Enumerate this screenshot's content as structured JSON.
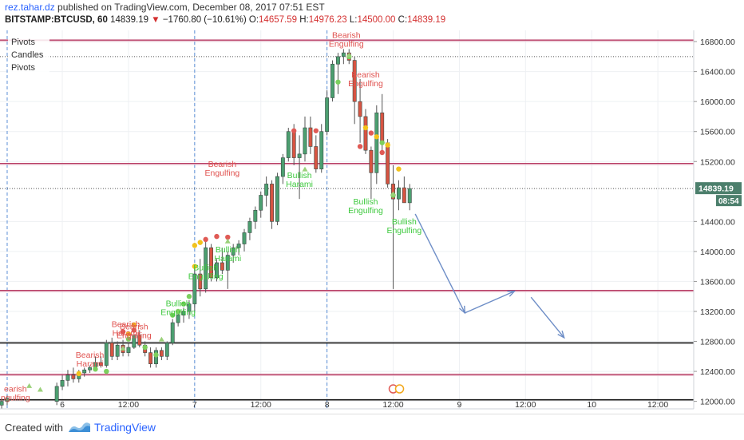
{
  "header": {
    "user": "rez.tahar.dz",
    "published_text": "published on TradingView.com, December 08, 2017 07:51 EST",
    "symbol": "BITSTAMP:BTCUSD, 60",
    "last": "14839.19",
    "change_arrow": "▼",
    "change": "−1760.80 (−10.61%)",
    "o_label": "O:",
    "o_value": "14657.59",
    "h_label": "H:",
    "h_value": "14976.23",
    "l_label": "L:",
    "l_value": "14500.00",
    "c_label": "C:",
    "c_value": "14839.19"
  },
  "indicators": [
    "Pivots",
    "Candles",
    "Pivots"
  ],
  "price_tag": {
    "price": "14839.19",
    "countdown": "08:54"
  },
  "footer": {
    "created_with": "Created with",
    "brand": "TradingView"
  },
  "colors": {
    "up": "#4c9f70",
    "down": "#d75442",
    "pattern_bear": "#e0524f",
    "pattern_bull": "#3ec93e",
    "hline_pink": "#b5365f",
    "arrow": "#6e8ec7",
    "tag": "#4c7f6c"
  },
  "chart_data": {
    "type": "candlestick",
    "y_ticks": [
      12000,
      12400,
      12800,
      13200,
      13600,
      14000,
      14400,
      15200,
      15600,
      16000,
      16400,
      16800
    ],
    "y_tick_labels": [
      "12000.00",
      "12400.00",
      "12800.00",
      "13200.00",
      "13600.00",
      "14000.00",
      "14400.00",
      "15200.00",
      "15600.00",
      "16000.00",
      "16400.00",
      "16800.00"
    ],
    "ylim": [
      11900,
      16950
    ],
    "x_ticks": [
      {
        "label": "6",
        "t": 0
      },
      {
        "label": "12:00",
        "t": 12
      },
      {
        "label": "7",
        "t": 24
      },
      {
        "label": "12:00",
        "t": 36
      },
      {
        "label": "8",
        "t": 48
      },
      {
        "label": "12:00",
        "t": 60
      },
      {
        "label": "9",
        "t": 72
      },
      {
        "label": "12:00",
        "t": 84
      },
      {
        "label": "10",
        "t": 96
      },
      {
        "label": "12:00",
        "t": 108
      }
    ],
    "xlim": [
      -11.3,
      114.5
    ],
    "day_separators": [
      -10,
      24,
      48
    ],
    "hlines": [
      {
        "price": 16820,
        "color": "pink"
      },
      {
        "price": 15175,
        "color": "pink"
      },
      {
        "price": 13480,
        "color": "pink"
      },
      {
        "price": 12780,
        "color": "black"
      },
      {
        "price": 12360,
        "color": "pink"
      },
      {
        "price": 12020,
        "color": "black"
      }
    ],
    "dotted_lines": [
      16600,
      14839
    ],
    "candles": [
      [
        -11,
        11950,
        12050,
        11900,
        12000
      ],
      [
        -10,
        12000,
        12080,
        11950,
        12040
      ],
      [
        -1,
        12000,
        12250,
        11950,
        12200
      ],
      [
        0,
        12200,
        12350,
        12150,
        12280
      ],
      [
        1,
        12280,
        12420,
        12200,
        12350
      ],
      [
        2,
        12350,
        12450,
        12250,
        12300
      ],
      [
        3,
        12300,
        12420,
        12250,
        12380
      ],
      [
        4,
        12380,
        12450,
        12330,
        12420
      ],
      [
        5,
        12420,
        12480,
        12380,
        12450
      ],
      [
        6,
        12450,
        12600,
        12420,
        12520
      ],
      [
        7,
        12520,
        12600,
        12450,
        12480
      ],
      [
        8,
        12480,
        12820,
        12450,
        12780
      ],
      [
        9,
        12780,
        12850,
        12550,
        12600
      ],
      [
        10,
        12600,
        12800,
        12550,
        12750
      ],
      [
        11,
        12750,
        12820,
        12600,
        12650
      ],
      [
        12,
        12650,
        12780,
        12600,
        12720
      ],
      [
        13,
        12720,
        12900,
        12700,
        12880
      ],
      [
        14,
        12880,
        12950,
        12720,
        12750
      ],
      [
        15,
        12750,
        12800,
        12600,
        12650
      ],
      [
        16,
        12650,
        12720,
        12450,
        12500
      ],
      [
        17,
        12500,
        12720,
        12450,
        12680
      ],
      [
        18,
        12680,
        12720,
        12550,
        12600
      ],
      [
        19,
        12600,
        12800,
        12550,
        12780
      ],
      [
        20,
        12780,
        13100,
        12750,
        13050
      ],
      [
        21,
        13050,
        13200,
        13000,
        13150
      ],
      [
        22,
        13150,
        13250,
        13050,
        13200
      ],
      [
        23,
        13200,
        13350,
        13100,
        13300
      ],
      [
        24,
        13300,
        13800,
        13200,
        13700
      ],
      [
        25,
        13700,
        13900,
        13400,
        13500
      ],
      [
        26,
        13500,
        14150,
        13450,
        14050
      ],
      [
        27,
        14050,
        14100,
        13600,
        13650
      ],
      [
        28,
        13650,
        13900,
        13600,
        13850
      ],
      [
        29,
        13850,
        14050,
        13700,
        13750
      ],
      [
        30,
        13750,
        14000,
        13500,
        13950
      ],
      [
        31,
        13950,
        14100,
        13850,
        14050
      ],
      [
        32,
        14050,
        14150,
        13950,
        14100
      ],
      [
        33,
        14100,
        14300,
        14000,
        14250
      ],
      [
        34,
        14250,
        14450,
        14150,
        14400
      ],
      [
        35,
        14400,
        14600,
        14300,
        14550
      ],
      [
        36,
        14550,
        14800,
        14450,
        14750
      ],
      [
        37,
        14750,
        15000,
        14600,
        14900
      ],
      [
        38,
        14900,
        14950,
        14300,
        14400
      ],
      [
        39,
        14400,
        15050,
        14350,
        15000
      ],
      [
        40,
        15000,
        15300,
        14900,
        15250
      ],
      [
        41,
        15250,
        15650,
        15200,
        15600
      ],
      [
        42,
        15600,
        15700,
        15150,
        15250
      ],
      [
        43,
        15250,
        15550,
        14700,
        15300
      ],
      [
        44,
        15300,
        15800,
        15200,
        15650
      ],
      [
        45,
        15650,
        15800,
        15300,
        15400
      ],
      [
        46,
        15400,
        15550,
        15050,
        15100
      ],
      [
        47,
        15100,
        15700,
        15050,
        15600
      ],
      [
        48,
        15600,
        16150,
        15550,
        16050
      ],
      [
        49,
        16050,
        16550,
        16000,
        16500
      ],
      [
        50,
        16500,
        16650,
        16100,
        16600
      ],
      [
        51,
        16600,
        16700,
        16500,
        16650
      ],
      [
        52,
        16650,
        16700,
        16500,
        16550
      ],
      [
        53,
        16550,
        16600,
        15700,
        16000
      ],
      [
        54,
        16000,
        16300,
        15450,
        15800
      ],
      [
        55,
        15800,
        15900,
        15300,
        15350
      ],
      [
        56,
        15350,
        15400,
        14700,
        15050
      ],
      [
        57,
        15050,
        15950,
        14900,
        15850
      ],
      [
        58,
        15850,
        16100,
        15300,
        15450
      ],
      [
        59,
        15450,
        15500,
        14850,
        14900
      ],
      [
        60,
        14900,
        15150,
        13500,
        14700
      ],
      [
        61,
        14700,
        14950,
        14550,
        14850
      ],
      [
        62,
        14850,
        15000,
        14650,
        14650
      ],
      [
        63,
        14650,
        14900,
        14550,
        14839
      ]
    ],
    "pattern_labels": [
      {
        "lines": [
          "Bearish",
          "Engulfing"
        ],
        "t": 51.5,
        "price": 16850,
        "kind": "bear"
      },
      {
        "lines": [
          "Bearish",
          "Engulfing"
        ],
        "t": 55,
        "price": 16320,
        "kind": "bear"
      },
      {
        "lines": [
          "Bearish",
          "Engulfing"
        ],
        "t": 29,
        "price": 15130,
        "kind": "bear"
      },
      {
        "lines": [
          "Bullish",
          "Harami"
        ],
        "t": 43,
        "price": 14980,
        "kind": "bull"
      },
      {
        "lines": [
          "Bullish",
          "Engulfing"
        ],
        "t": 55,
        "price": 14630,
        "kind": "bull"
      },
      {
        "lines": [
          "Bullish",
          "Engulfing"
        ],
        "t": 62,
        "price": 14360,
        "kind": "bull"
      },
      {
        "lines": [
          "Bullish",
          "Harami"
        ],
        "t": 30,
        "price": 13990,
        "kind": "bull"
      },
      {
        "lines": [
          "Bullish",
          "Engulfing"
        ],
        "t": 26,
        "price": 13750,
        "kind": "bull"
      },
      {
        "lines": [
          "Bullish",
          "Engulfing"
        ],
        "t": 21,
        "price": 13270,
        "kind": "bull"
      },
      {
        "lines": [
          "Bearish",
          "Harami"
        ],
        "t": 11.5,
        "price": 12990,
        "kind": "bear"
      },
      {
        "lines": [
          "Bearish",
          "Engulfing"
        ],
        "t": 13,
        "price": 12960,
        "kind": "bear"
      },
      {
        "lines": [
          "Bearish",
          "Harami"
        ],
        "t": 5,
        "price": 12580,
        "kind": "bear"
      },
      {
        "lines": [
          "earish",
          "ngulfing"
        ],
        "t": -8.5,
        "price": 12130,
        "kind": "bear"
      }
    ],
    "pivot_dots": [
      [
        50,
        16260,
        "green"
      ],
      [
        52,
        16600,
        "green"
      ],
      [
        54,
        15400,
        "red"
      ],
      [
        55,
        15650,
        "yellow"
      ],
      [
        56,
        15580,
        "red"
      ],
      [
        57,
        15530,
        "yellow"
      ],
      [
        58,
        15450,
        "green"
      ],
      [
        59,
        15420,
        "yellow"
      ],
      [
        58,
        15320,
        "red"
      ],
      [
        61,
        15100,
        "yellow"
      ],
      [
        60,
        14750,
        "green"
      ],
      [
        42,
        15610,
        "red"
      ],
      [
        46,
        15610,
        "red"
      ],
      [
        30,
        14190,
        "red"
      ],
      [
        28,
        14200,
        "red"
      ],
      [
        26,
        14160,
        "red"
      ],
      [
        25,
        14120,
        "yellow"
      ],
      [
        24,
        14080,
        "yellow"
      ],
      [
        24,
        13800,
        "yellow"
      ],
      [
        23,
        13400,
        "green"
      ],
      [
        22,
        13300,
        "green"
      ],
      [
        21,
        13200,
        "green"
      ],
      [
        20,
        13150,
        "green"
      ],
      [
        13,
        13020,
        "yellow"
      ],
      [
        13,
        12950,
        "red"
      ],
      [
        12,
        12900,
        "yellow"
      ],
      [
        11,
        12930,
        "red"
      ],
      [
        12,
        12830,
        "green"
      ],
      [
        15,
        12720,
        "green"
      ],
      [
        17,
        12620,
        "green"
      ],
      [
        3,
        12370,
        "yellow"
      ],
      [
        6,
        12430,
        "green"
      ],
      [
        8,
        12400,
        "green"
      ]
    ],
    "triangles": [
      [
        60,
        14760
      ],
      [
        52,
        16610
      ],
      [
        44,
        15090
      ],
      [
        30,
        14130
      ],
      [
        18,
        12820
      ],
      [
        11,
        12700
      ],
      [
        -6,
        12200
      ],
      [
        -4,
        12150
      ]
    ],
    "scenario_path": [
      [
        64,
        14500
      ],
      [
        73,
        13180
      ],
      [
        82,
        13470
      ],
      [
        85,
        13390
      ],
      [
        91,
        12850
      ]
    ]
  }
}
